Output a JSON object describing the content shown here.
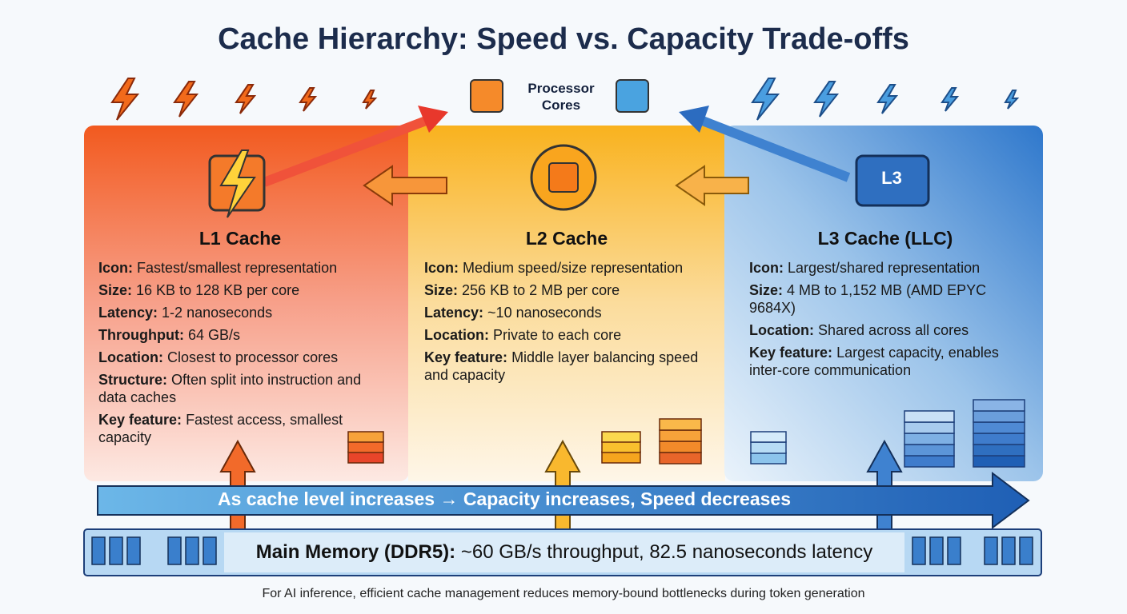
{
  "header": {
    "title": "Cache Hierarchy: Speed vs. Capacity Trade-offs"
  },
  "processor": {
    "label": "Processor Cores"
  },
  "panels": [
    {
      "title": "L1 Cache",
      "items": [
        {
          "label": "Icon:",
          "text": "Fastest/smallest representation"
        },
        {
          "label": "Size:",
          "text": "16 KB to 128 KB per core"
        },
        {
          "label": "Latency:",
          "text": "1-2 nanoseconds"
        },
        {
          "label": "Throughput:",
          "text": "64 GB/s"
        },
        {
          "label": "Location:",
          "text": "Closest to processor cores"
        },
        {
          "label": "Structure:",
          "text": "Often split into instruction and data caches"
        },
        {
          "label": "Key feature:",
          "text": "Fastest access, smallest capacity"
        }
      ]
    },
    {
      "title": "L2 Cache",
      "items": [
        {
          "label": "Icon:",
          "text": "Medium speed/size representation"
        },
        {
          "label": "Size:",
          "text": "256 KB to 2 MB per core"
        },
        {
          "label": "Latency:",
          "text": "~10 nanoseconds"
        },
        {
          "label": "Location:",
          "text": "Private to each core"
        },
        {
          "label": "Key feature:",
          "text": "Middle layer balancing speed and capacity"
        }
      ]
    },
    {
      "title": "L3 Cache (LLC)",
      "icon_text": "L3",
      "items": [
        {
          "label": "Icon:",
          "text": "Largest/shared representation"
        },
        {
          "label": "Size:",
          "text": "4 MB to 1,152 MB (AMD EPYC 9684X)"
        },
        {
          "label": "Location:",
          "text": "Shared across all cores"
        },
        {
          "label": "Key feature:",
          "text": "Largest capacity, enables inter-core communication"
        }
      ]
    }
  ],
  "trend": {
    "text": "As cache level increases → Capacity increases, Speed decreases"
  },
  "memory": {
    "label": "Main Memory (DDR5):",
    "text": "~60 GB/s throughput, 82.5 nanoseconds latency"
  },
  "footer": {
    "text": "For AI inference, efficient cache management reduces memory-bound bottlenecks during token generation"
  }
}
